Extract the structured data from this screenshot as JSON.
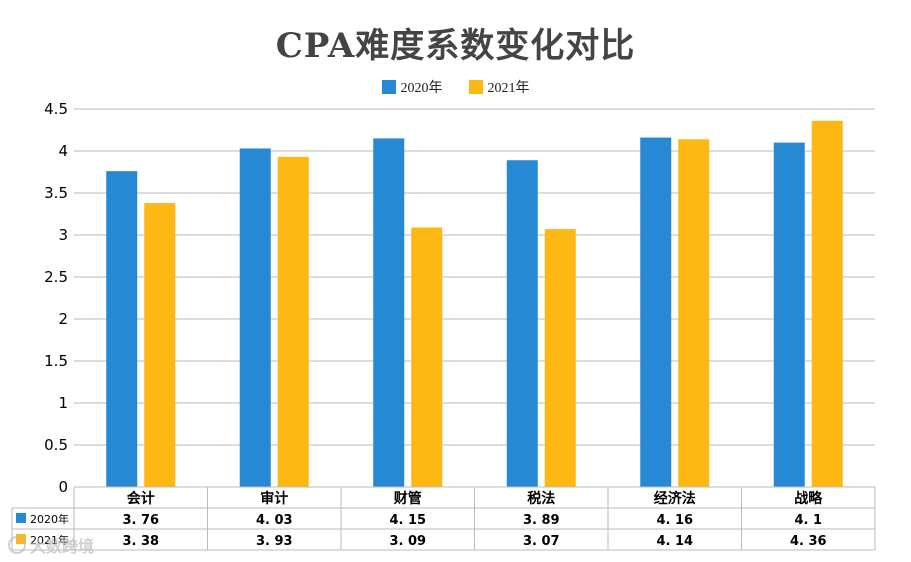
{
  "colors": {
    "series_2020": "#2788D4",
    "series_2021": "#FDB813",
    "grid": "#bbbbbb",
    "axis_text": "#000000"
  },
  "chart_data": {
    "type": "bar",
    "title": "CPA难度系数变化对比",
    "categories": [
      "会计",
      "审计",
      "财管",
      "税法",
      "经济法",
      "战略"
    ],
    "series": [
      {
        "name": "2020年",
        "values": [
          3.76,
          4.03,
          4.15,
          3.89,
          4.16,
          4.1
        ]
      },
      {
        "name": "2021年",
        "values": [
          3.38,
          3.93,
          3.09,
          3.07,
          4.14,
          4.36
        ]
      }
    ],
    "table_values": [
      [
        "3. 76",
        "4. 03",
        "4. 15",
        "3. 89",
        "4. 16",
        "4. 1"
      ],
      [
        "3. 38",
        "3. 93",
        "3. 09",
        "3. 07",
        "4. 14",
        "4. 36"
      ]
    ],
    "ylim": [
      0,
      4.5
    ],
    "yticks": [
      "0",
      "0.5",
      "1",
      "1.5",
      "2",
      "2.5",
      "3",
      "3.5",
      "4",
      "4.5"
    ],
    "xlabel": "",
    "ylabel": "",
    "legend_position": "top-center",
    "grid": true
  },
  "watermark": "大数跨境"
}
